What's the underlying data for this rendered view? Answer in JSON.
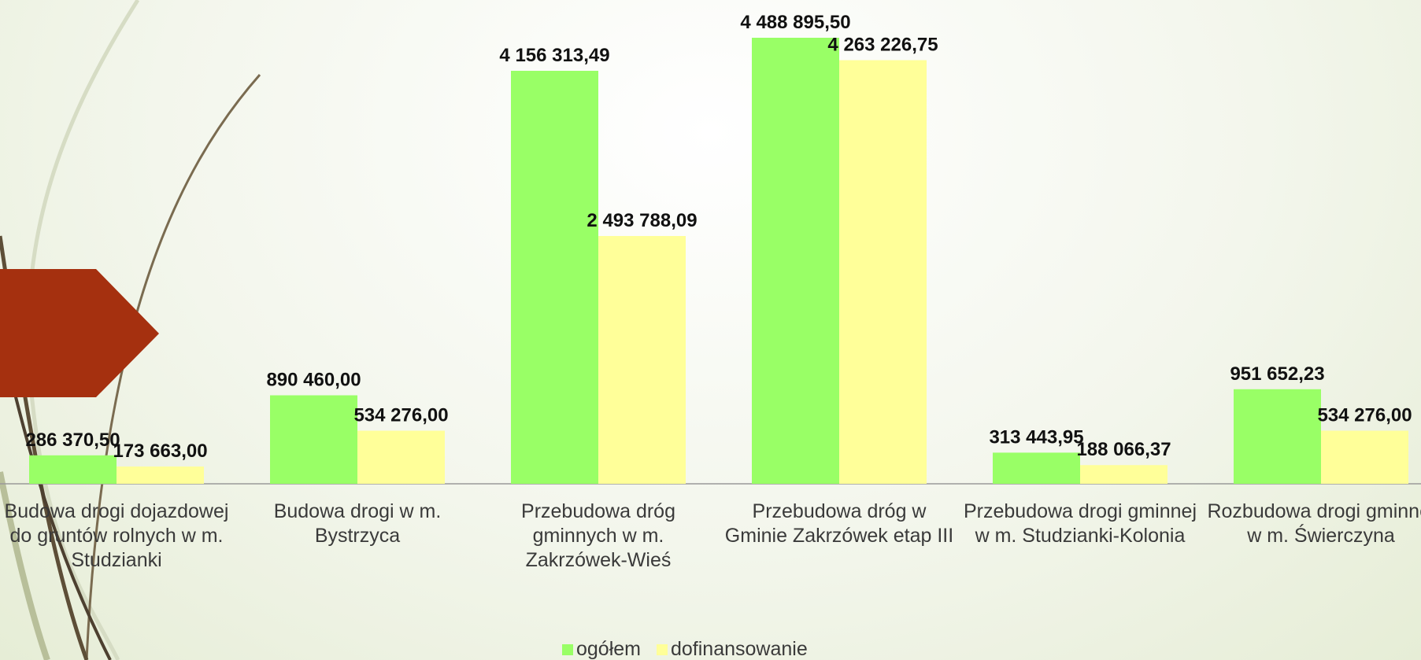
{
  "chart_data": {
    "type": "bar",
    "categories": [
      "Budowa drogi dojazdowej do gruntów rolnych w m. Studzianki",
      "Budowa drogi w m. Bystrzyca",
      "Przebudowa dróg gminnych w m. Zakrzówek-Wieś",
      "Przebudowa dróg w Gminie Zakrzówek etap III",
      "Przebudowa drogi gminnej w m. Studzianki-Kolonia",
      "Rozbudowa drogi gminnej w m. Świerczyna"
    ],
    "series": [
      {
        "name": "ogółem",
        "color": "#99ff66",
        "values": [
          286370.5,
          890460,
          4156313.49,
          4488895.5,
          313443.95,
          951652.23
        ],
        "value_labels": [
          "286 370,50",
          "890 460,00",
          "4 156 313,49",
          "4 488 895,50",
          "313 443,95",
          "951 652,23"
        ]
      },
      {
        "name": "dofinansowanie",
        "color": "#ffff99",
        "values": [
          173663,
          534276,
          2493788.09,
          4263226.75,
          188066.37,
          534276
        ],
        "value_labels": [
          "173 663,00",
          "534 276,00",
          "2 493 788,09",
          "4 263 226,75",
          "188 066,37",
          "534 276,00"
        ]
      }
    ],
    "legend": "bottom"
  }
}
